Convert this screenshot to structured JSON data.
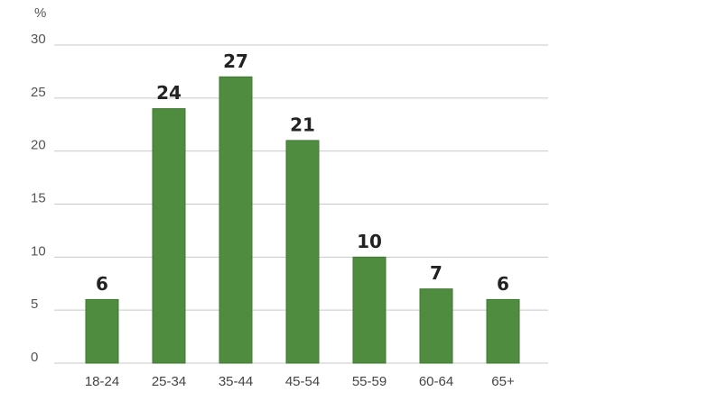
{
  "chart_data": {
    "type": "bar",
    "y_label": "%",
    "categories": [
      "18-24",
      "25-34",
      "35-44",
      "45-54",
      "55-59",
      "60-64",
      "65+"
    ],
    "values": [
      6,
      24,
      27,
      21,
      10,
      7,
      6
    ],
    "color": "#4f8c3f",
    "ylim": [
      0,
      30
    ],
    "yticks": [
      0,
      5,
      10,
      15,
      20,
      25,
      30
    ],
    "grid": true
  }
}
